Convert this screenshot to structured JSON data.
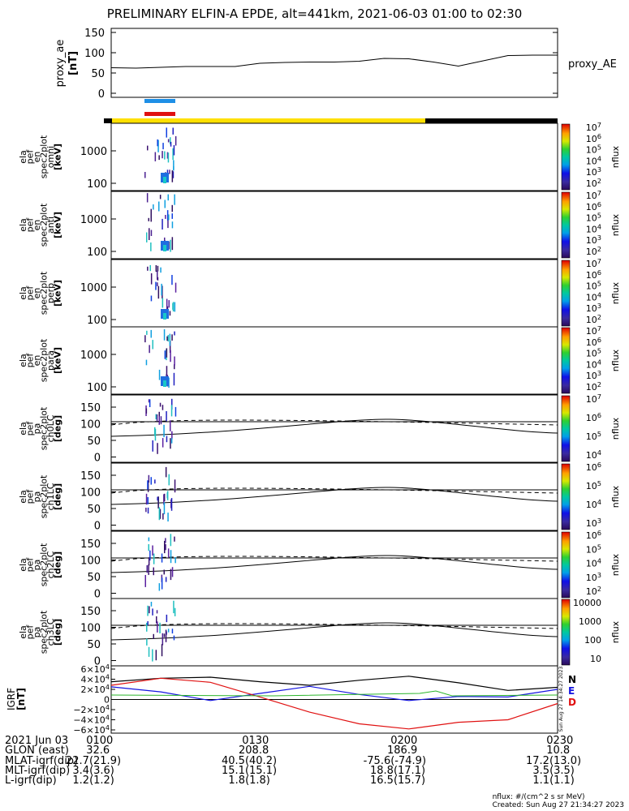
{
  "title": "PRELIMINARY ELFIN-A EPDE, alt=441km, 2021-06-03 01:00 to 02:30",
  "colors": {
    "blue_bar": "#1e8fe6",
    "red_bar": "#e01010",
    "yellow_bar": "#ffe000",
    "black_bar": "#000000",
    "igrf_n": "#000000",
    "igrf_e": "#1414e0",
    "igrf_d": "#e01010",
    "igrf_green": "#2ab52a"
  },
  "proxy_ae": {
    "ylabel": "proxy_ae",
    "units": "[nT]",
    "series_label": "proxy_AE",
    "ticks": [
      "150",
      "100",
      "50",
      "0"
    ]
  },
  "spec_panels": [
    {
      "labels": [
        "ela",
        "pef",
        "en",
        "spec2plot",
        "omni"
      ],
      "units": "[keV]",
      "ticks": [
        "1000",
        "100"
      ],
      "cb_label": "nflux",
      "cb_ticks": [
        "10^7",
        "10^6",
        "10^5",
        "10^4",
        "10^3",
        "10^2"
      ]
    },
    {
      "labels": [
        "ela",
        "pef",
        "en",
        "spec2plot",
        "anti"
      ],
      "units": "[keV]",
      "ticks": [
        "1000",
        "100"
      ],
      "cb_label": "nflux",
      "cb_ticks": [
        "10^7",
        "10^6",
        "10^5",
        "10^4",
        "10^3",
        "10^2"
      ]
    },
    {
      "labels": [
        "ela",
        "pef",
        "en",
        "spec2plot",
        "perp"
      ],
      "units": "[keV]",
      "ticks": [
        "1000",
        "100"
      ],
      "cb_label": "nflux",
      "cb_ticks": [
        "10^7",
        "10^6",
        "10^5",
        "10^4",
        "10^3",
        "10^2"
      ]
    },
    {
      "labels": [
        "ela",
        "pef",
        "en",
        "spec2plot",
        "para"
      ],
      "units": "[keV]",
      "ticks": [
        "1000",
        "100"
      ],
      "cb_label": "nflux",
      "cb_ticks": [
        "10^7",
        "10^6",
        "10^5",
        "10^4",
        "10^3",
        "10^2"
      ]
    }
  ],
  "pa_panels": [
    {
      "labels": [
        "ela",
        "pef",
        "pa",
        "spec2plot",
        "ch0LC"
      ],
      "units": "[deg]",
      "ticks": [
        "150",
        "100",
        "50",
        "0"
      ],
      "cb_label": "nflux",
      "cb_ticks": [
        "10^7",
        "10^6",
        "10^5",
        "10^4"
      ]
    },
    {
      "labels": [
        "ela",
        "pef",
        "pa",
        "spec2plot",
        "ch1LC"
      ],
      "units": "[deg]",
      "ticks": [
        "150",
        "100",
        "50",
        "0"
      ],
      "cb_label": "nflux",
      "cb_ticks": [
        "10^6",
        "10^5",
        "10^4",
        "10^3"
      ]
    },
    {
      "labels": [
        "ela",
        "pef",
        "pa",
        "spec2plot",
        "ch2LC"
      ],
      "units": "[deg]",
      "ticks": [
        "150",
        "100",
        "50",
        "0"
      ],
      "cb_label": "nflux",
      "cb_ticks": [
        "10^6",
        "10^5",
        "10^4",
        "10^3",
        "10^2"
      ]
    },
    {
      "labels": [
        "ela",
        "pef",
        "pa",
        "spec2plot",
        "ch3LC"
      ],
      "units": "[deg]",
      "ticks": [
        "150",
        "100",
        "50",
        "0"
      ],
      "cb_label": "nflux",
      "cb_ticks": [
        "10000",
        "1000",
        "100",
        "10"
      ]
    }
  ],
  "igrf": {
    "ylabel": "IGRF",
    "units": "[nT]",
    "ticks": [
      "6×10^4",
      "4×10^4",
      "2×10^4",
      "0",
      "−2×10^4",
      "−4×10^4",
      "−6×10^4"
    ],
    "legend": [
      "N",
      "E",
      "D"
    ],
    "timestamp": "Sun Aug 27 14:34:27 2023"
  },
  "footer": {
    "rows": [
      {
        "label": "2021 Jun 03",
        "values": [
          "0100",
          "0130",
          "0200",
          "0230"
        ]
      },
      {
        "label": "GLON (east)",
        "values": [
          "32.6",
          "208.8",
          "186.9",
          "10.8"
        ]
      },
      {
        "label": "MLAT-igrf(dip)",
        "values": [
          "22.7(21.9)",
          "40.5(40.2)",
          "-75.6(-74.9)",
          "17.2(13.0)"
        ]
      },
      {
        "label": "MLT-igrf(dip)",
        "values": [
          "3.4(3.6)",
          "15.1(15.1)",
          "18.8(17.1)",
          "3.5(3.5)"
        ]
      },
      {
        "label": "L-igrf(dip)",
        "values": [
          "1.2(1.2)",
          "1.8(1.8)",
          "16.5(15.7)",
          "1.1(1.1)"
        ]
      }
    ],
    "nflux_units": "nflux: #/(cm^2 s sr MeV)",
    "created": "Created: Sun Aug 27 21:34:27 2023"
  },
  "chart_data": [
    {
      "type": "line",
      "title": "proxy_AE",
      "x": [
        "01:00",
        "01:05",
        "01:10",
        "01:15",
        "01:20",
        "01:25",
        "01:30",
        "01:35",
        "01:40",
        "01:45",
        "01:50",
        "01:55",
        "02:00",
        "02:05",
        "02:10",
        "02:15",
        "02:20",
        "02:25",
        "02:30"
      ],
      "series": [
        {
          "name": "proxy_AE",
          "values": [
            63,
            62,
            64,
            66,
            66,
            66,
            74,
            76,
            77,
            77,
            79,
            86,
            85,
            77,
            67,
            80,
            93,
            94,
            94
          ]
        }
      ],
      "ylim": [
        0,
        150
      ]
    },
    {
      "type": "line",
      "title": "IGRF",
      "x": [
        "01:00",
        "01:10",
        "01:20",
        "01:30",
        "01:40",
        "01:50",
        "02:00",
        "02:10",
        "02:20",
        "02:30"
      ],
      "series": [
        {
          "name": "N",
          "values": [
            35000,
            42000,
            44000,
            35000,
            28000,
            38000,
            46000,
            33000,
            18000,
            24000
          ]
        },
        {
          "name": "E",
          "values": [
            25000,
            15000,
            -2000,
            12000,
            26000,
            10000,
            -2000,
            6000,
            5000,
            20000
          ]
        },
        {
          "name": "D",
          "values": [
            28000,
            42000,
            34000,
            5000,
            -25000,
            -48000,
            -58000,
            -45000,
            -40000,
            -8000
          ]
        }
      ],
      "ylim": [
        -60000,
        60000
      ]
    }
  ]
}
